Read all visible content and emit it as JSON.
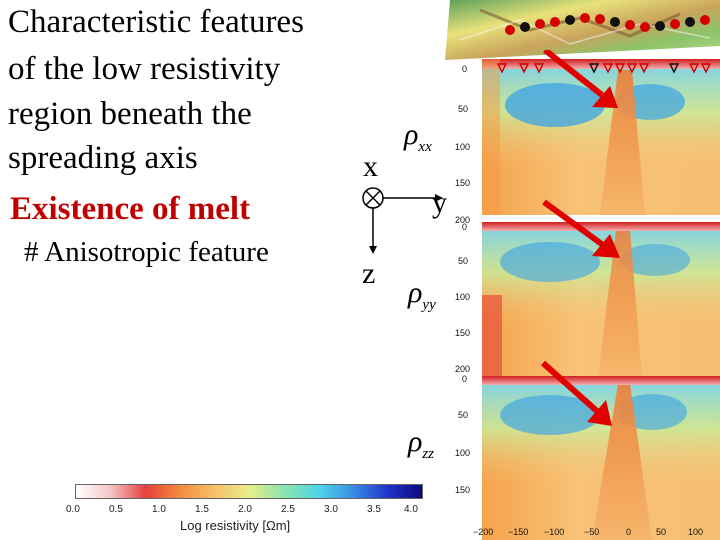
{
  "heading": {
    "lines": [
      "Characteristic features",
      "of the low resistivity",
      "region beneath the",
      "spreading axis"
    ],
    "emphasis": "Existence of melt",
    "note": "# Anisotropic feature"
  },
  "axes_glyph": {
    "x": "x",
    "y": "y",
    "z": "z"
  },
  "panels": [
    {
      "symbol": "ρ",
      "subscript": "xx",
      "depth_ticks": [
        "0",
        "50",
        "100",
        "150",
        "200"
      ]
    },
    {
      "symbol": "ρ",
      "subscript": "yy",
      "depth_ticks": [
        "0",
        "50",
        "100",
        "150",
        "200"
      ]
    },
    {
      "symbol": "ρ",
      "subscript": "zz",
      "depth_ticks": [
        "0",
        "50",
        "100",
        "150"
      ]
    }
  ],
  "x_ticks": [
    "−200",
    "−150",
    "−100",
    "−50",
    "0",
    "50",
    "100"
  ],
  "colorbar": {
    "ticks": [
      "0.0",
      "0.5",
      "1.0",
      "1.5",
      "2.0",
      "2.5",
      "3.0",
      "3.5",
      "4.0"
    ],
    "label": "Log resistivity [Ωm]",
    "colors": [
      "#ffffff",
      "#f4c6c6",
      "#e63f3f",
      "#f28a3a",
      "#f7c16a",
      "#e6ee8a",
      "#8fe4ae",
      "#4fd6e6",
      "#3a8ee6",
      "#2233cc",
      "#0b0a7a"
    ]
  },
  "accent": "#e00000"
}
